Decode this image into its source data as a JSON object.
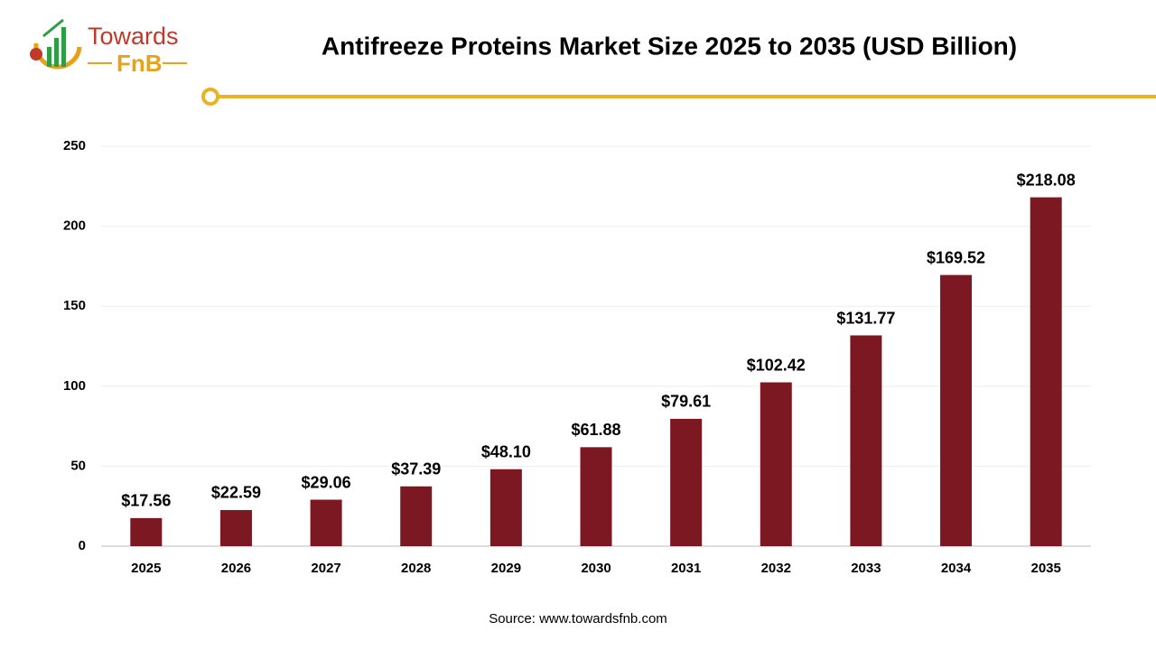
{
  "logo": {
    "line1": "Towards",
    "line2": "FnB"
  },
  "chart_data": {
    "type": "bar",
    "title": "Antifreeze Proteins Market Size 2025 to 2035 (USD Billion)",
    "categories": [
      "2025",
      "2026",
      "2027",
      "2028",
      "2029",
      "2030",
      "2031",
      "2032",
      "2033",
      "2034",
      "2035"
    ],
    "values": [
      17.56,
      22.59,
      29.06,
      37.39,
      48.1,
      61.88,
      79.61,
      102.42,
      131.77,
      169.52,
      218.08
    ],
    "value_labels": [
      "$17.56",
      "$22.59",
      "$29.06",
      "$37.39",
      "$48.10",
      "$61.88",
      "$79.61",
      "$102.42",
      "$131.77",
      "$169.52",
      "$218.08"
    ],
    "color": "#7b1822",
    "ylim": [
      0,
      250
    ],
    "yticks": [
      0,
      50,
      100,
      150,
      200,
      250
    ],
    "grid": true,
    "source": "Source: www.towardsfnb.com"
  }
}
